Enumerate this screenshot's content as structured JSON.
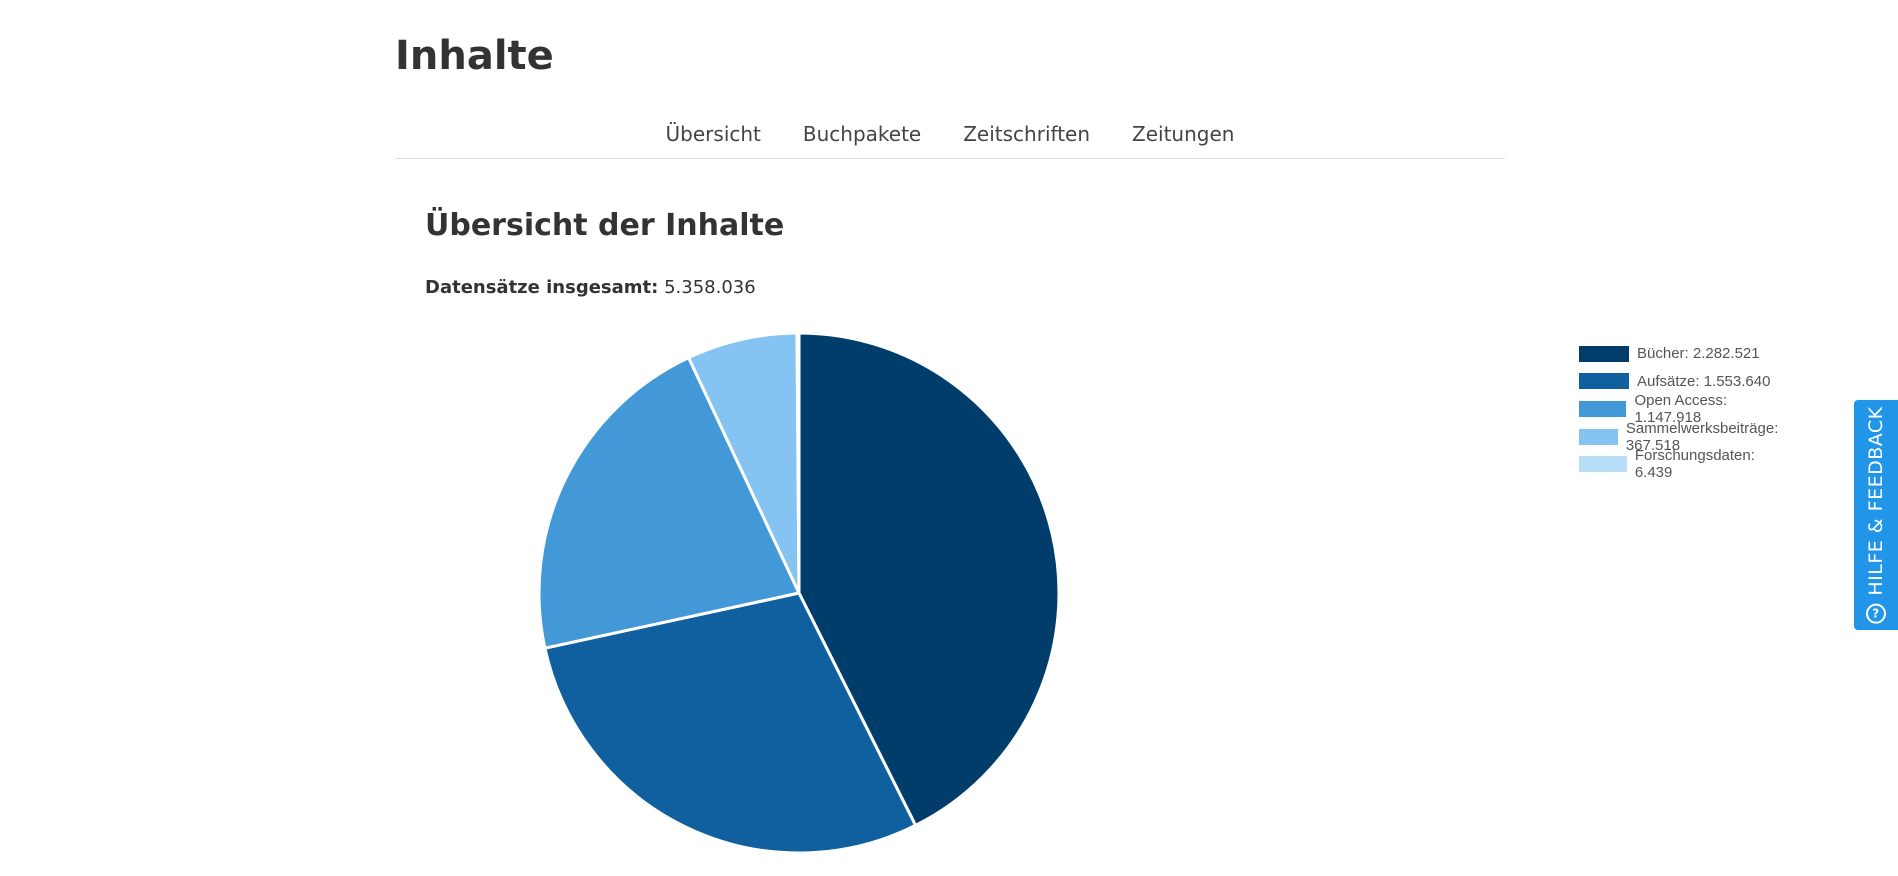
{
  "page": {
    "title": "Inhalte"
  },
  "nav": {
    "items": [
      {
        "label": "Übersicht"
      },
      {
        "label": "Buchpakete"
      },
      {
        "label": "Zeitschriften"
      },
      {
        "label": "Zeitungen"
      }
    ]
  },
  "overview": {
    "title": "Übersicht der Inhalte",
    "total_label": "Datensätze insgesamt:",
    "total_value": "5.358.036"
  },
  "feedback": {
    "label": "HILFE & FEEDBACK",
    "icon": "help-circle-icon"
  },
  "chart_data": {
    "type": "pie",
    "categories": [
      "Bücher",
      "Aufsätze",
      "Open Access",
      "Sammelwerksbeiträge",
      "Forschungsdaten"
    ],
    "values": [
      2282521,
      1553640,
      1147918,
      367518,
      6439
    ],
    "colors": [
      "#003d6b",
      "#1060a0",
      "#4399d8",
      "#85c4f2",
      "#b9defa"
    ],
    "legend": [
      "Bücher: 2.282.521",
      "Aufsätze: 1.553.640",
      "Open Access: 1.147.918",
      "Sammelwerksbeiträge: 367.518",
      "Forschungsdaten: 6.439"
    ],
    "legend_position": "right"
  }
}
